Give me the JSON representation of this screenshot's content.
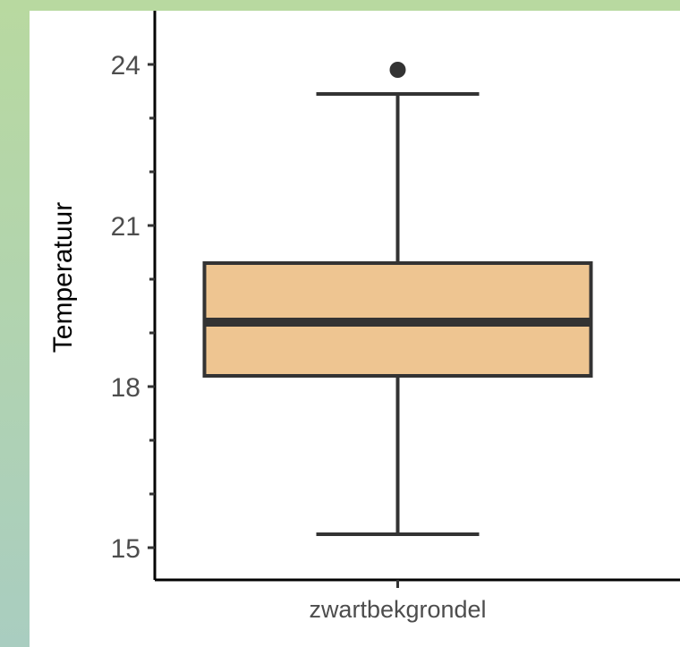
{
  "chart_data": {
    "type": "box",
    "title": "",
    "xlabel": "",
    "ylabel": "Temperatuur",
    "ylim": [
      14.4,
      25.0
    ],
    "yticks": [
      15,
      18,
      21,
      24
    ],
    "categories": [
      "zwartbekgrondel"
    ],
    "boxes": [
      {
        "category": "zwartbekgrondel",
        "whisker_low": 15.25,
        "q1": 18.2,
        "median": 19.2,
        "q3": 20.3,
        "whisker_high": 23.45,
        "outliers": [
          23.9
        ]
      }
    ],
    "grid": false,
    "legend": "none"
  },
  "colors": {
    "box_fill": "#eec591",
    "box_stroke": "#333333",
    "outlier": "#333333",
    "axis": "#000000"
  }
}
